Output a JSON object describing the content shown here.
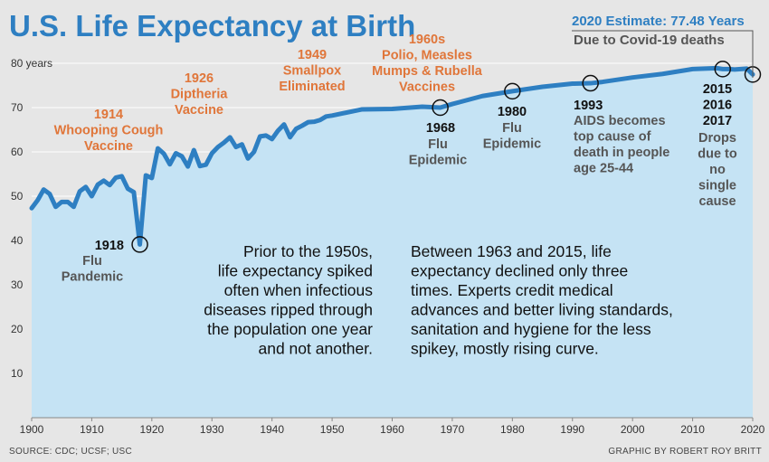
{
  "title": "U.S. Life Expectancy at Birth",
  "source": "SOURCE: CDC; UCSF; USC",
  "credit": "GRAPHIC BY ROBERT ROY BRITT",
  "estimate": {
    "line1": "2020 Estimate: 77.48 Years",
    "line2": "Due to Covid-19 deaths"
  },
  "notes": {
    "left": [
      "Prior to the 1950s,",
      "life expectancy spiked",
      "often when infectious",
      "diseases ripped through",
      "the population one year",
      "and not another."
    ],
    "right": [
      "Between 1963 and 2015, life",
      "expectancy declined only three",
      "times. Experts credit medical",
      "advances and better living standards,",
      "sanitation and hygiene for the less",
      "spikey, mostly rising curve."
    ]
  },
  "annotations": [
    {
      "id": "1914",
      "color": "orange",
      "lines": [
        "1914",
        "Whooping Cough",
        "Vaccine"
      ]
    },
    {
      "id": "1918",
      "color": "black",
      "lines": [
        "1918"
      ]
    },
    {
      "id": "1918b",
      "color": "gray",
      "lines": [
        "Flu",
        "Pandemic"
      ]
    },
    {
      "id": "1926",
      "color": "orange",
      "lines": [
        "1926",
        "Diptheria",
        "Vaccine"
      ]
    },
    {
      "id": "1949",
      "color": "orange",
      "lines": [
        "1949",
        "Smallpox",
        "Eliminated"
      ]
    },
    {
      "id": "1960s",
      "color": "orange",
      "lines": [
        "1960s",
        "Polio, Measles",
        "Mumps & Rubella",
        "Vaccines"
      ]
    },
    {
      "id": "1968",
      "color": "black",
      "lines": [
        "1968"
      ]
    },
    {
      "id": "1968b",
      "color": "gray",
      "lines": [
        "Flu",
        "Epidemic"
      ]
    },
    {
      "id": "1980",
      "color": "black",
      "lines": [
        "1980"
      ]
    },
    {
      "id": "1980b",
      "color": "gray",
      "lines": [
        "Flu",
        "Epidemic"
      ]
    },
    {
      "id": "1993",
      "color": "black",
      "lines": [
        "1993"
      ]
    },
    {
      "id": "1993b",
      "color": "gray",
      "lines": [
        "AIDS becomes",
        "top cause of",
        "death in people",
        "age 25-44"
      ]
    },
    {
      "id": "2015",
      "color": "black",
      "lines": [
        "2015",
        "2016",
        "2017"
      ]
    },
    {
      "id": "2015b",
      "color": "gray",
      "lines": [
        "Drops",
        "due to",
        "no",
        "single",
        "cause"
      ]
    }
  ],
  "chart_data": {
    "type": "area",
    "title": "U.S. Life Expectancy at Birth",
    "xlim": [
      1900,
      2020
    ],
    "ylim": [
      0,
      80
    ],
    "x_ticks": [
      1900,
      1910,
      1920,
      1930,
      1940,
      1950,
      1960,
      1970,
      1980,
      1990,
      2000,
      2010,
      2020
    ],
    "y_ticks": [
      10,
      20,
      30,
      40,
      50,
      60,
      70,
      80
    ],
    "y_tick_labels": [
      "10",
      "20",
      "30",
      "40",
      "50",
      "60",
      "70",
      "80 years"
    ],
    "grid": "horizontal",
    "colors": {
      "line": "#2e7fc2",
      "fill": "#c5e3f4",
      "background": "#e6e6e6"
    },
    "highlighted_years": [
      1918,
      1968,
      1980,
      1993,
      2015,
      2020
    ],
    "series": [
      {
        "x": [
          1900,
          1901,
          1902,
          1903,
          1904,
          1905,
          1906,
          1907,
          1908,
          1909,
          1910,
          1911,
          1912,
          1913,
          1914,
          1915,
          1916,
          1917,
          1918,
          1919,
          1920,
          1921,
          1922,
          1923,
          1924,
          1925,
          1926,
          1927,
          1928,
          1929,
          1930,
          1931,
          1932,
          1933,
          1934,
          1935,
          1936,
          1937,
          1938,
          1939,
          1940,
          1941,
          1942,
          1943,
          1944,
          1945,
          1946,
          1947,
          1948,
          1949,
          1950,
          1955,
          1960,
          1965,
          1968,
          1970,
          1975,
          1980,
          1985,
          1990,
          1993,
          1995,
          2000,
          2005,
          2010,
          2014,
          2015,
          2016,
          2017,
          2018,
          2019,
          2020
        ],
        "values": [
          47.3,
          49.1,
          51.5,
          50.5,
          47.6,
          48.7,
          48.7,
          47.6,
          51.1,
          52.1,
          50.0,
          52.6,
          53.5,
          52.5,
          54.2,
          54.5,
          51.7,
          50.9,
          39.1,
          54.7,
          54.1,
          60.8,
          59.6,
          57.2,
          59.7,
          59.0,
          56.7,
          60.4,
          56.8,
          57.1,
          59.7,
          61.1,
          62.1,
          63.3,
          61.1,
          61.7,
          58.5,
          60.0,
          63.5,
          63.7,
          62.9,
          64.8,
          66.2,
          63.3,
          65.2,
          65.9,
          66.7,
          66.8,
          67.2,
          68.0,
          68.2,
          69.6,
          69.7,
          70.2,
          70.0,
          70.8,
          72.6,
          73.7,
          74.7,
          75.4,
          75.5,
          75.8,
          76.8,
          77.6,
          78.7,
          78.9,
          78.7,
          78.7,
          78.6,
          78.7,
          78.8,
          77.48
        ]
      }
    ]
  }
}
